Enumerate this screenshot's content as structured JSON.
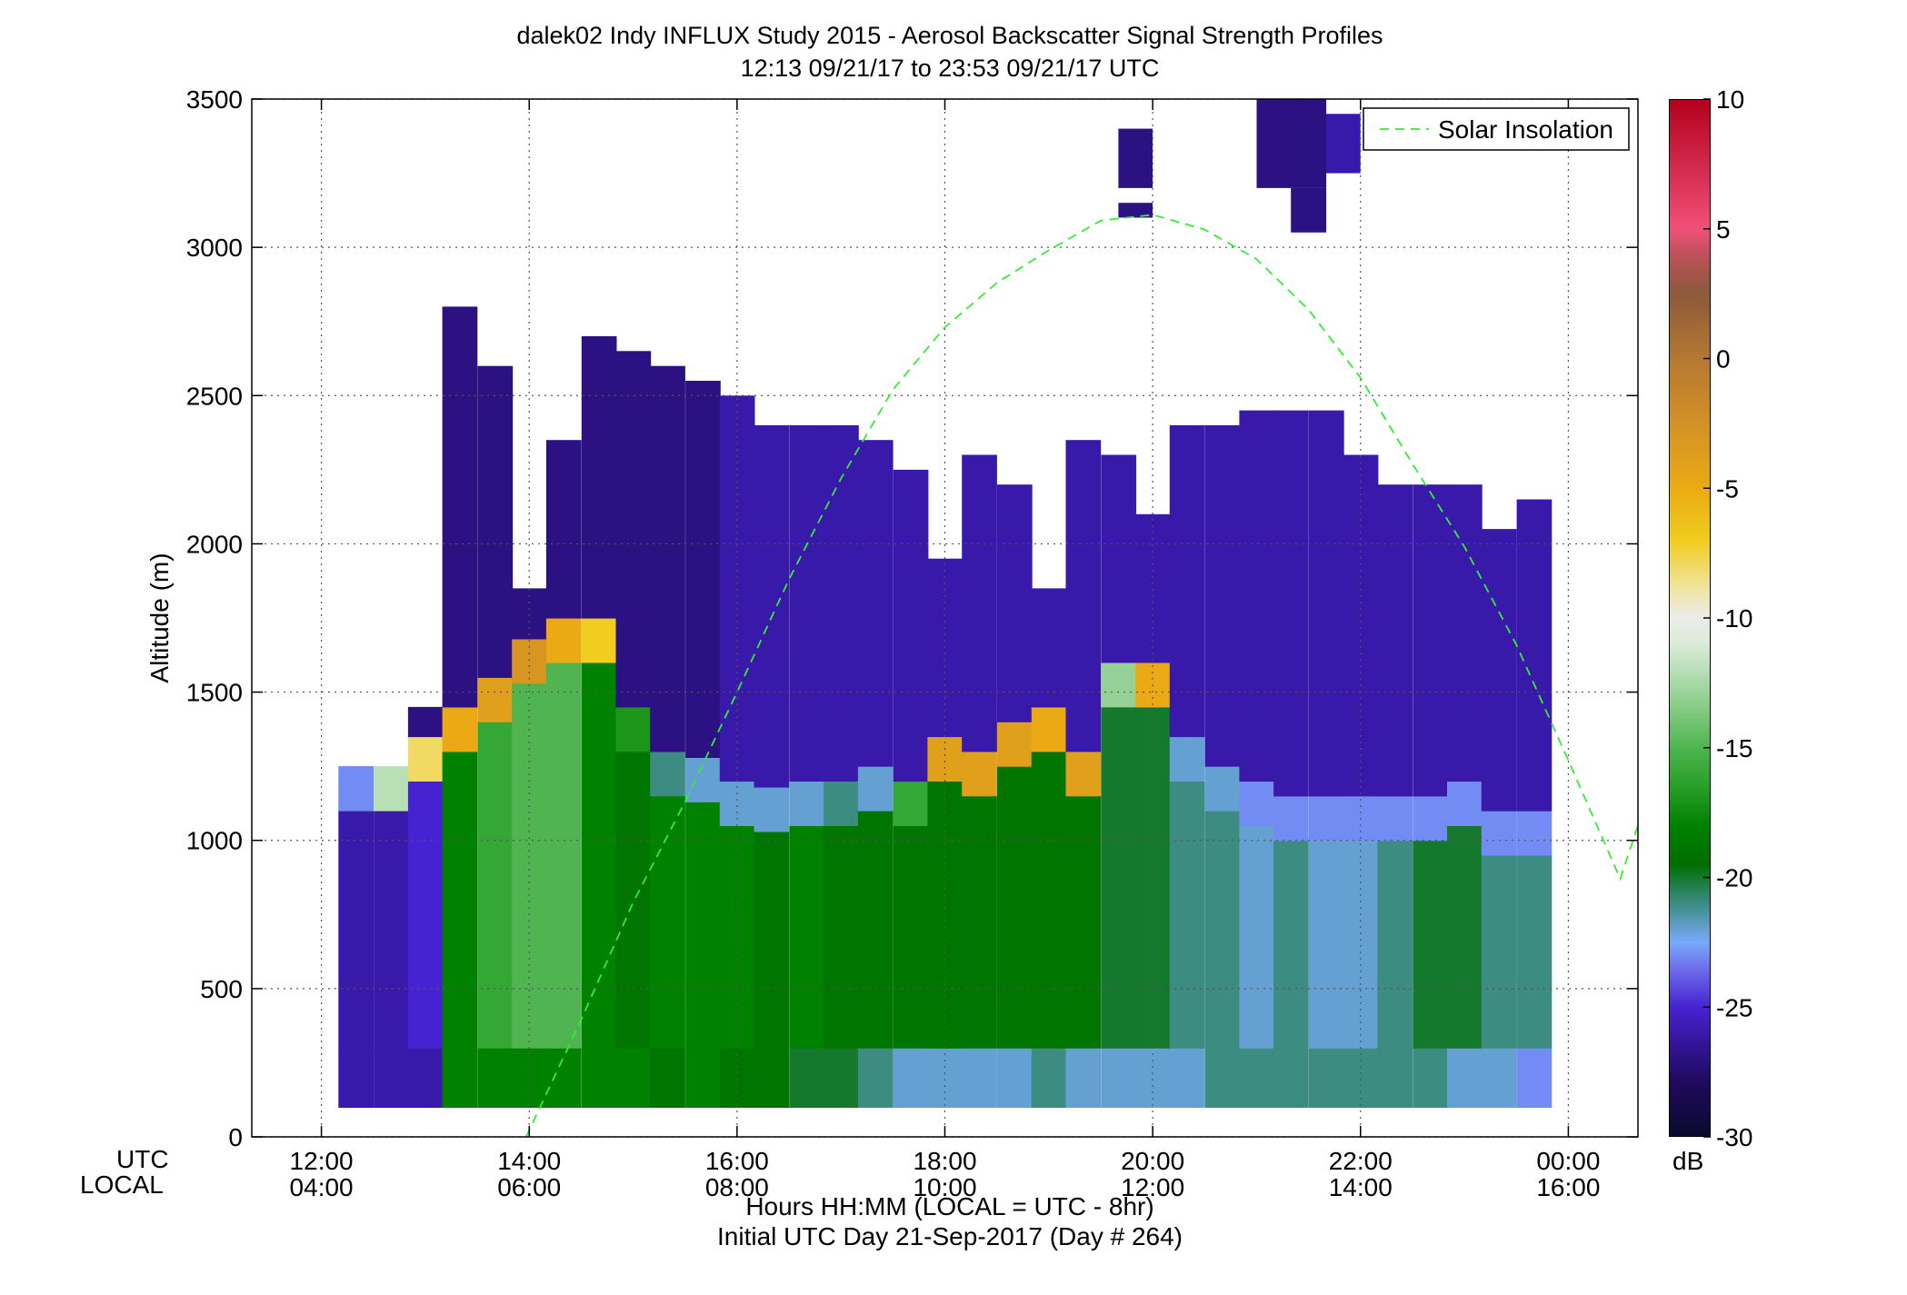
{
  "chart_data": {
    "type": "heatmap",
    "title": "dalek02 Indy INFLUX Study 2015 - Aerosol Backscatter Signal Strength Profiles",
    "subtitle": "12:13 09/21/17 to 23:53 09/21/17  UTC",
    "ylabel": "Altitude (m)",
    "xlabel_line1": "Hours HH:MM  (LOCAL = UTC - 8hr)",
    "xlabel_line2": "Initial UTC Day 21-Sep-2017 (Day # 264)",
    "x_row_labels": [
      "UTC",
      "LOCAL"
    ],
    "x_ticks_utc": [
      "12:00",
      "14:00",
      "16:00",
      "18:00",
      "20:00",
      "22:00",
      "00:00"
    ],
    "x_ticks_local": [
      "04:00",
      "06:00",
      "08:00",
      "10:00",
      "12:00",
      "14:00",
      "16:00"
    ],
    "x_tick_hours": [
      12,
      14,
      16,
      18,
      20,
      22,
      24
    ],
    "xlim_hours": [
      11.33,
      24.67
    ],
    "y_ticks": [
      "0",
      "500",
      "1000",
      "1500",
      "2000",
      "2500",
      "3000",
      "3500"
    ],
    "ylim": [
      0,
      3500
    ],
    "grid": true,
    "legend": {
      "entries": [
        "Solar Insolation"
      ],
      "placement": "top-right"
    },
    "colorbar": {
      "label": "dB",
      "ticks": [
        "10",
        "5",
        "0",
        "-5",
        "-10",
        "-15",
        "-20",
        "-25",
        "-30"
      ],
      "range": [
        -30,
        10
      ]
    },
    "solar_insolation_curve": {
      "hours": [
        13.97,
        14.5,
        15.0,
        15.5,
        16.0,
        16.5,
        17.0,
        17.5,
        18.0,
        18.5,
        19.0,
        19.5,
        20.0,
        20.5,
        21.0,
        21.5,
        22.0,
        22.5,
        23.0,
        23.5,
        24.0,
        24.5,
        24.67
      ],
      "altitude_m": [
        0,
        395,
        790,
        1130,
        1500,
        1880,
        2220,
        2520,
        2730,
        2880,
        2990,
        3090,
        3110,
        3060,
        2960,
        2790,
        2560,
        2270,
        1990,
        1660,
        1270,
        870,
        1050
      ]
    },
    "profile_times_hours": [
      12.33,
      12.67,
      13.0,
      13.33,
      13.67,
      14.0,
      14.33,
      14.67,
      15.0,
      15.33,
      15.67,
      16.0,
      16.33,
      16.67,
      17.0,
      17.33,
      17.67,
      18.0,
      18.33,
      18.67,
      19.0,
      19.33,
      19.67,
      20.0,
      20.33,
      20.67,
      21.0,
      21.33,
      21.67,
      22.0,
      22.33,
      22.67,
      23.0,
      23.33,
      23.67
    ],
    "bin_height_m": 50,
    "profile_tops_m": [
      1250,
      1250,
      1450,
      2800,
      2600,
      1850,
      2350,
      2700,
      2650,
      2600,
      2550,
      2500,
      2400,
      2400,
      2400,
      2350,
      2250,
      1950,
      2300,
      2200,
      1850,
      2350,
      2300,
      2100,
      2400,
      2400,
      2450,
      2450,
      2450,
      2300,
      2200,
      2200,
      2200,
      2050,
      2150
    ],
    "profile_bottoms_m": [
      100,
      100,
      100,
      100,
      100,
      100,
      100,
      100,
      100,
      100,
      100,
      100,
      100,
      100,
      100,
      100,
      100,
      100,
      100,
      100,
      100,
      100,
      100,
      100,
      100,
      100,
      100,
      100,
      100,
      100,
      100,
      100,
      100,
      100,
      100
    ],
    "boundary_layer_top_m": [
      1250,
      1250,
      1350,
      1450,
      1550,
      1680,
      1750,
      1750,
      1450,
      1300,
      1280,
      1200,
      1180,
      1200,
      1200,
      1250,
      1200,
      1350,
      1300,
      1400,
      1450,
      1300,
      1600,
      1600,
      1350,
      1250,
      1200,
      1150,
      1150,
      1150,
      1150,
      1150,
      1200,
      1100,
      1100
    ],
    "layer_signal_db": {
      "near_ground": [
        -26,
        -26,
        -26,
        -18,
        -18,
        -18,
        -18,
        -18,
        -18,
        -19,
        -18,
        -19,
        -19,
        -20,
        -20,
        -21,
        -22,
        -22,
        -22,
        -22,
        -21,
        -22,
        -22,
        -22,
        -22,
        -21,
        -21,
        -21,
        -21,
        -21,
        -21,
        -21,
        -22,
        -22,
        -23
      ],
      "boundary_layer": [
        -26,
        -26,
        -25,
        -18,
        -16,
        -15,
        -15,
        -18,
        -19,
        -18,
        -18,
        -18,
        -19,
        -18,
        -19,
        -19,
        -19,
        -19,
        -19,
        -19,
        -19,
        -19,
        -20,
        -20,
        -21,
        -21,
        -22,
        -21,
        -22,
        -22,
        -21,
        -20,
        -20,
        -21,
        -21
      ],
      "aerosol_top": [
        -23,
        -12,
        -8,
        -5,
        -4,
        -3,
        -5,
        -7,
        -17,
        -21,
        -22,
        -22,
        -22,
        -22,
        -21,
        -22,
        -16,
        -4,
        -4,
        -4,
        -5,
        -4,
        -13,
        -5,
        -22,
        -22,
        -23,
        -23,
        -23,
        -23,
        -23,
        -23,
        -23,
        -23,
        -23
      ],
      "free_troposphere": [
        -27,
        -27,
        -27,
        -27,
        -27,
        -27,
        -27,
        -27,
        -27,
        -27,
        -27,
        -26,
        -26,
        -26,
        -26,
        -26,
        -26,
        -26,
        -26,
        -26,
        -26,
        -26,
        -26,
        -26,
        -26,
        -26,
        -26,
        -26,
        -26,
        -26,
        -26,
        -26,
        -26,
        -26,
        -26
      ]
    },
    "upper_cloud_patches": [
      {
        "start_hour": 19.67,
        "end_hour": 20.0,
        "bottom_m": 3200,
        "top_m": 3400,
        "db": -27
      },
      {
        "start_hour": 19.67,
        "end_hour": 20.0,
        "bottom_m": 3100,
        "top_m": 3150,
        "db": -27
      },
      {
        "start_hour": 21.0,
        "end_hour": 21.67,
        "bottom_m": 3200,
        "top_m": 3500,
        "db": -27
      },
      {
        "start_hour": 21.33,
        "end_hour": 21.67,
        "bottom_m": 3050,
        "top_m": 3200,
        "db": -27
      },
      {
        "start_hour": 21.67,
        "end_hour": 22.0,
        "bottom_m": 3250,
        "top_m": 3450,
        "db": -26
      }
    ]
  }
}
